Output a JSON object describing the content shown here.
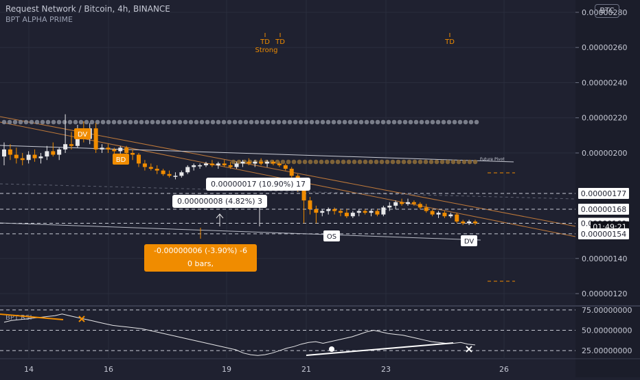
{
  "header": {
    "title": "Request Network / Bitcoin, 4h, BINANCE",
    "indicator": "BPT ALPHA PRIME",
    "currency_badge": "BTC"
  },
  "colors": {
    "background": "#1f2130",
    "up_candle": "#e8e8ea",
    "down_candle": "#f08c00",
    "accent": "#f08c00",
    "text": "#c7cad6",
    "grid": "#2a2d3d"
  },
  "chart_data": {
    "type": "candlestick",
    "price_axis": {
      "ylim": [
        1.13e-06,
        2.87e-06
      ],
      "ticks": [
        "0.00000280",
        "0.00000260",
        "0.00000240",
        "0.00000220",
        "0.00000200",
        "0.00000140",
        "0.00000120"
      ],
      "tick_values": [
        2.8e-06,
        2.6e-06,
        2.4e-06,
        2.2e-06,
        2e-06,
        1.4e-06,
        1.2e-06
      ]
    },
    "x_axis": {
      "ticks": [
        "14",
        "16",
        "19",
        "21",
        "23",
        "26"
      ]
    },
    "price_labels": [
      {
        "text": "0.00000177",
        "value": 1.77e-06,
        "style": "white"
      },
      {
        "text": "0.00000168",
        "value": 1.68e-06,
        "style": "white"
      },
      {
        "text": "0.00000160",
        "value": 1.6e-06,
        "style": "white"
      },
      {
        "text": "01:49:21",
        "value": 1.58e-06,
        "style": "dark"
      },
      {
        "text": "0.00000154",
        "value": 1.54e-06,
        "style": "white"
      }
    ],
    "horizontal_levels": [
      1.77e-06,
      1.68e-06,
      1.6e-06,
      1.54e-06
    ],
    "candles": [
      {
        "o": 1.98e-06,
        "h": 2.06e-06,
        "l": 1.93e-06,
        "c": 2.02e-06
      },
      {
        "o": 2.02e-06,
        "h": 2.05e-06,
        "l": 1.96e-06,
        "c": 1.99e-06
      },
      {
        "o": 1.99e-06,
        "h": 2.03e-06,
        "l": 1.94e-06,
        "c": 1.97e-06
      },
      {
        "o": 1.97e-06,
        "h": 2e-06,
        "l": 1.93e-06,
        "c": 1.96e-06
      },
      {
        "o": 1.96e-06,
        "h": 2.01e-06,
        "l": 1.94e-06,
        "c": 1.99e-06
      },
      {
        "o": 1.99e-06,
        "h": 2.02e-06,
        "l": 1.95e-06,
        "c": 1.97e-06
      },
      {
        "o": 1.97e-06,
        "h": 2e-06,
        "l": 1.94e-06,
        "c": 1.98e-06
      },
      {
        "o": 1.98e-06,
        "h": 2.04e-06,
        "l": 1.96e-06,
        "c": 2.01e-06
      },
      {
        "o": 2.01e-06,
        "h": 2.06e-06,
        "l": 1.98e-06,
        "c": 1.99e-06
      },
      {
        "o": 1.99e-06,
        "h": 2.03e-06,
        "l": 1.96e-06,
        "c": 2.02e-06
      },
      {
        "o": 2.02e-06,
        "h": 2.22e-06,
        "l": 2e-06,
        "c": 2.05e-06
      },
      {
        "o": 2.05e-06,
        "h": 2.12e-06,
        "l": 2.02e-06,
        "c": 2.04e-06
      },
      {
        "o": 2.04e-06,
        "h": 2.16e-06,
        "l": 2.03e-06,
        "c": 2.13e-06
      },
      {
        "o": 2.13e-06,
        "h": 2.18e-06,
        "l": 2.06e-06,
        "c": 2.08e-06
      },
      {
        "o": 2.08e-06,
        "h": 2.17e-06,
        "l": 2.05e-06,
        "c": 2.14e-06
      },
      {
        "o": 2.14e-06,
        "h": 2.17e-06,
        "l": 2e-06,
        "c": 2.02e-06
      },
      {
        "o": 2.02e-06,
        "h": 2.05e-06,
        "l": 2e-06,
        "c": 2.03e-06
      },
      {
        "o": 2.03e-06,
        "h": 2.05e-06,
        "l": 2e-06,
        "c": 2.02e-06
      },
      {
        "o": 2.02e-06,
        "h": 2.03e-06,
        "l": 1.99e-06,
        "c": 2.01e-06
      },
      {
        "o": 2.01e-06,
        "h": 2.04e-06,
        "l": 1.99e-06,
        "c": 2.03e-06
      },
      {
        "o": 2.03e-06,
        "h": 2.04e-06,
        "l": 1.98e-06,
        "c": 2e-06
      },
      {
        "o": 2e-06,
        "h": 2.02e-06,
        "l": 1.96e-06,
        "c": 1.99e-06
      },
      {
        "o": 1.99e-06,
        "h": 2e-06,
        "l": 1.92e-06,
        "c": 1.94e-06
      },
      {
        "o": 1.94e-06,
        "h": 1.96e-06,
        "l": 1.9e-06,
        "c": 1.92e-06
      },
      {
        "o": 1.92e-06,
        "h": 1.94e-06,
        "l": 1.9e-06,
        "c": 1.91e-06
      },
      {
        "o": 1.91e-06,
        "h": 1.93e-06,
        "l": 1.88e-06,
        "c": 1.9e-06
      },
      {
        "o": 1.9e-06,
        "h": 1.91e-06,
        "l": 1.87e-06,
        "c": 1.88e-06
      },
      {
        "o": 1.88e-06,
        "h": 1.9e-06,
        "l": 1.86e-06,
        "c": 1.87e-06
      },
      {
        "o": 1.87e-06,
        "h": 1.89e-06,
        "l": 1.85e-06,
        "c": 1.87e-06
      },
      {
        "o": 1.87e-06,
        "h": 1.9e-06,
        "l": 1.86e-06,
        "c": 1.89e-06
      },
      {
        "o": 1.89e-06,
        "h": 1.93e-06,
        "l": 1.88e-06,
        "c": 1.92e-06
      },
      {
        "o": 1.92e-06,
        "h": 1.94e-06,
        "l": 1.9e-06,
        "c": 1.93e-06
      },
      {
        "o": 1.93e-06,
        "h": 1.94e-06,
        "l": 1.91e-06,
        "c": 1.93e-06
      },
      {
        "o": 1.93e-06,
        "h": 1.95e-06,
        "l": 1.92e-06,
        "c": 1.94e-06
      },
      {
        "o": 1.94e-06,
        "h": 1.96e-06,
        "l": 1.92e-06,
        "c": 1.93e-06
      },
      {
        "o": 1.93e-06,
        "h": 1.95e-06,
        "l": 1.91e-06,
        "c": 1.94e-06
      },
      {
        "o": 1.94e-06,
        "h": 1.96e-06,
        "l": 1.92e-06,
        "c": 1.93e-06
      },
      {
        "o": 1.93e-06,
        "h": 1.95e-06,
        "l": 1.91e-06,
        "c": 1.92e-06
      },
      {
        "o": 1.92e-06,
        "h": 1.95e-06,
        "l": 1.91e-06,
        "c": 1.94e-06
      },
      {
        "o": 1.94e-06,
        "h": 1.96e-06,
        "l": 1.92e-06,
        "c": 1.95e-06
      },
      {
        "o": 1.95e-06,
        "h": 1.97e-06,
        "l": 1.93e-06,
        "c": 1.94e-06
      },
      {
        "o": 1.94e-06,
        "h": 1.96e-06,
        "l": 1.92e-06,
        "c": 1.95e-06
      },
      {
        "o": 1.95e-06,
        "h": 1.97e-06,
        "l": 1.93e-06,
        "c": 1.94e-06
      },
      {
        "o": 1.94e-06,
        "h": 1.96e-06,
        "l": 1.92e-06,
        "c": 1.95e-06
      },
      {
        "o": 1.95e-06,
        "h": 1.96e-06,
        "l": 1.93e-06,
        "c": 1.94e-06
      },
      {
        "o": 1.94e-06,
        "h": 1.95e-06,
        "l": 1.92e-06,
        "c": 1.93e-06
      },
      {
        "o": 1.93e-06,
        "h": 1.94e-06,
        "l": 1.9e-06,
        "c": 1.91e-06
      },
      {
        "o": 1.91e-06,
        "h": 1.92e-06,
        "l": 1.86e-06,
        "c": 1.87e-06
      },
      {
        "o": 1.87e-06,
        "h": 1.88e-06,
        "l": 1.78e-06,
        "c": 1.8e-06
      },
      {
        "o": 1.8e-06,
        "h": 1.82e-06,
        "l": 1.6e-06,
        "c": 1.73e-06
      },
      {
        "o": 1.73e-06,
        "h": 1.75e-06,
        "l": 1.65e-06,
        "c": 1.68e-06
      },
      {
        "o": 1.68e-06,
        "h": 1.7e-06,
        "l": 1.6e-06,
        "c": 1.66e-06
      },
      {
        "o": 1.66e-06,
        "h": 1.68e-06,
        "l": 1.64e-06,
        "c": 1.67e-06
      },
      {
        "o": 1.67e-06,
        "h": 1.69e-06,
        "l": 1.65e-06,
        "c": 1.68e-06
      },
      {
        "o": 1.68e-06,
        "h": 1.69e-06,
        "l": 1.65e-06,
        "c": 1.67e-06
      },
      {
        "o": 1.67e-06,
        "h": 1.68e-06,
        "l": 1.64e-06,
        "c": 1.66e-06
      },
      {
        "o": 1.66e-06,
        "h": 1.68e-06,
        "l": 1.63e-06,
        "c": 1.64e-06
      },
      {
        "o": 1.64e-06,
        "h": 1.67e-06,
        "l": 1.63e-06,
        "c": 1.66e-06
      },
      {
        "o": 1.66e-06,
        "h": 1.68e-06,
        "l": 1.64e-06,
        "c": 1.67e-06
      },
      {
        "o": 1.67e-06,
        "h": 1.68e-06,
        "l": 1.65e-06,
        "c": 1.66e-06
      },
      {
        "o": 1.66e-06,
        "h": 1.68e-06,
        "l": 1.64e-06,
        "c": 1.67e-06
      },
      {
        "o": 1.67e-06,
        "h": 1.68e-06,
        "l": 1.64e-06,
        "c": 1.65e-06
      },
      {
        "o": 1.65e-06,
        "h": 1.7e-06,
        "l": 1.64e-06,
        "c": 1.69e-06
      },
      {
        "o": 1.69e-06,
        "h": 1.72e-06,
        "l": 1.67e-06,
        "c": 1.7e-06
      },
      {
        "o": 1.7e-06,
        "h": 1.73e-06,
        "l": 1.68e-06,
        "c": 1.72e-06
      },
      {
        "o": 1.72e-06,
        "h": 1.74e-06,
        "l": 1.7e-06,
        "c": 1.71e-06
      },
      {
        "o": 1.71e-06,
        "h": 1.74e-06,
        "l": 1.7e-06,
        "c": 1.72e-06
      },
      {
        "o": 1.72e-06,
        "h": 1.73e-06,
        "l": 1.7e-06,
        "c": 1.71e-06
      },
      {
        "o": 1.71e-06,
        "h": 1.72e-06,
        "l": 1.68e-06,
        "c": 1.69e-06
      },
      {
        "o": 1.69e-06,
        "h": 1.71e-06,
        "l": 1.66e-06,
        "c": 1.67e-06
      },
      {
        "o": 1.67e-06,
        "h": 1.68e-06,
        "l": 1.64e-06,
        "c": 1.65e-06
      },
      {
        "o": 1.65e-06,
        "h": 1.67e-06,
        "l": 1.63e-06,
        "c": 1.66e-06
      },
      {
        "o": 1.66e-06,
        "h": 1.67e-06,
        "l": 1.63e-06,
        "c": 1.64e-06
      },
      {
        "o": 1.64e-06,
        "h": 1.66e-06,
        "l": 1.63e-06,
        "c": 1.65e-06
      },
      {
        "o": 1.65e-06,
        "h": 1.66e-06,
        "l": 1.6e-06,
        "c": 1.61e-06
      },
      {
        "o": 1.61e-06,
        "h": 1.62e-06,
        "l": 1.59e-06,
        "c": 1.6e-06
      },
      {
        "o": 1.6e-06,
        "h": 1.62e-06,
        "l": 1.59e-06,
        "c": 1.61e-06
      },
      {
        "o": 1.61e-06,
        "h": 1.62e-06,
        "l": 1.59e-06,
        "c": 1.6e-06
      }
    ],
    "markers": [
      {
        "text": "DV",
        "style": "orange"
      },
      {
        "text": "BD",
        "style": "orange"
      },
      {
        "text": "OS",
        "style": "white"
      },
      {
        "text": "DV",
        "style": "white"
      },
      {
        "text": "TD",
        "style": "orange-text"
      },
      {
        "text": "TD",
        "style": "orange-text"
      },
      {
        "text": "Strong",
        "style": "orange-text"
      },
      {
        "text": "TD",
        "style": "orange-text"
      },
      {
        "text": "Future Pivot",
        "style": "small"
      }
    ],
    "measure_boxes": [
      {
        "text": "0.00000017 (10.90%) 17",
        "style": "white"
      },
      {
        "text": "0.00000008 (4.82%) 3",
        "style": "white"
      },
      {
        "text": "-0.00000006 (-3.90%) -6",
        "style": "orange"
      },
      {
        "text": "0 bars,",
        "style": "orange"
      }
    ],
    "oscillator": {
      "label": "BPT RSI",
      "ylim": [
        15,
        80
      ],
      "ticks": [
        "75.00000000",
        "50.00000000",
        "25.00000000"
      ],
      "tick_values": [
        75,
        50,
        25
      ],
      "values": [
        60,
        62,
        63,
        64,
        65,
        66,
        67,
        68,
        70,
        68,
        66,
        64,
        62,
        60,
        58,
        56,
        55,
        54,
        53,
        52,
        50,
        48,
        46,
        44,
        42,
        40,
        38,
        36,
        34,
        32,
        30,
        28,
        26,
        22,
        20,
        19,
        20,
        22,
        25,
        28,
        30,
        33,
        35,
        36,
        34,
        36,
        38,
        40,
        42,
        45,
        48,
        50,
        48,
        46,
        45,
        44,
        42,
        40,
        38,
        36,
        35,
        34,
        34,
        35,
        33,
        32
      ]
    }
  }
}
